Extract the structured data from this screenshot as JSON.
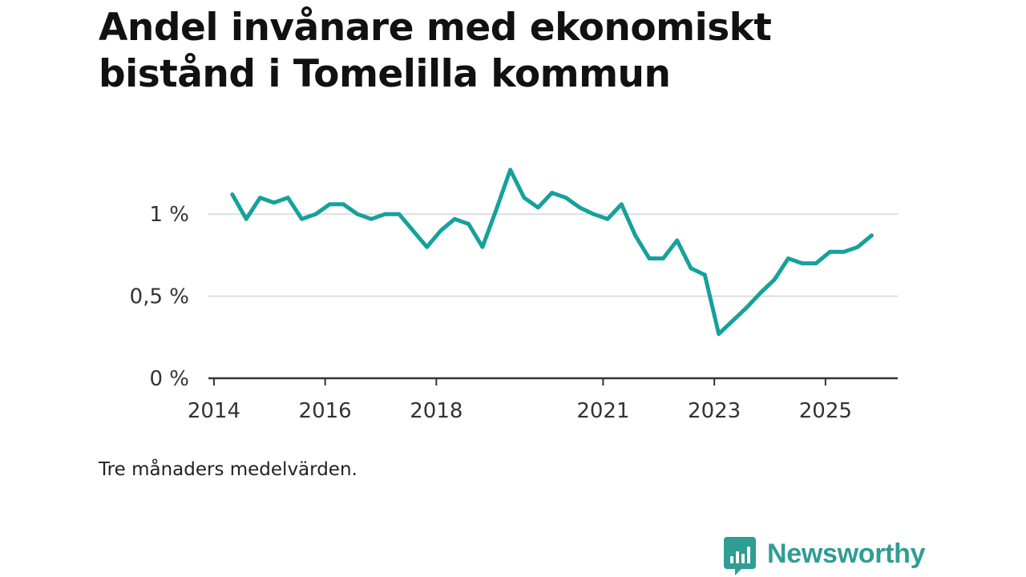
{
  "title": {
    "line1": "Andel invånare med ekonomiskt",
    "line2": "bistånd i Tomelilla kommun"
  },
  "note": "Tre månaders medelvärden.",
  "brand": {
    "name": "Newsworthy",
    "icon": "newsworthy-logo-icon"
  },
  "colors": {
    "line": "#16a19b",
    "grid": "#dddddd",
    "axis": "#333333",
    "brand": "#2f9d94",
    "title": "#111111"
  },
  "chart_data": {
    "type": "line",
    "title": "Andel invånare med ekonomiskt bistånd i Tomelilla kommun",
    "xlabel": "",
    "ylabel": "",
    "ylim": [
      0,
      1.25
    ],
    "xlim": [
      2013.9,
      2026.3
    ],
    "grid": true,
    "legend": "none",
    "y_ticks": [
      {
        "value": 0,
        "label": "0 %"
      },
      {
        "value": 0.5,
        "label": "0,5 %"
      },
      {
        "value": 1,
        "label": "1 %"
      }
    ],
    "x_ticks": [
      {
        "value": 2014,
        "label": "2014"
      },
      {
        "value": 2016,
        "label": "2016"
      },
      {
        "value": 2018,
        "label": "2018"
      },
      {
        "value": 2021,
        "label": "2021"
      },
      {
        "value": 2023,
        "label": "2023"
      },
      {
        "value": 2025,
        "label": "2025"
      }
    ],
    "series": [
      {
        "name": "Andel invånare med ekonomiskt bistånd",
        "x": [
          2014.33,
          2014.58,
          2014.83,
          2015.08,
          2015.33,
          2015.58,
          2015.83,
          2016.08,
          2016.33,
          2016.58,
          2016.83,
          2017.08,
          2017.33,
          2017.58,
          2017.83,
          2018.08,
          2018.33,
          2018.58,
          2018.83,
          2019.08,
          2019.33,
          2019.58,
          2019.83,
          2020.08,
          2020.33,
          2020.58,
          2020.83,
          2021.08,
          2021.33,
          2021.58,
          2021.83,
          2022.08,
          2022.33,
          2022.58,
          2022.83,
          2023.08,
          2023.33,
          2023.58,
          2023.83,
          2024.08,
          2024.33,
          2024.58,
          2024.83,
          2025.08,
          2025.33,
          2025.58,
          2025.83
        ],
        "values": [
          1.12,
          0.97,
          1.1,
          1.07,
          1.1,
          0.97,
          1.0,
          1.06,
          1.06,
          1.0,
          0.97,
          1.0,
          1.0,
          0.9,
          0.8,
          0.9,
          0.97,
          0.94,
          0.8,
          1.03,
          1.27,
          1.1,
          1.04,
          1.13,
          1.1,
          1.04,
          1.0,
          0.97,
          1.06,
          0.87,
          0.73,
          0.73,
          0.84,
          0.67,
          0.63,
          0.27,
          0.35,
          0.43,
          0.52,
          0.6,
          0.73,
          0.7,
          0.7,
          0.77,
          0.77,
          0.8,
          0.87
        ]
      }
    ]
  }
}
